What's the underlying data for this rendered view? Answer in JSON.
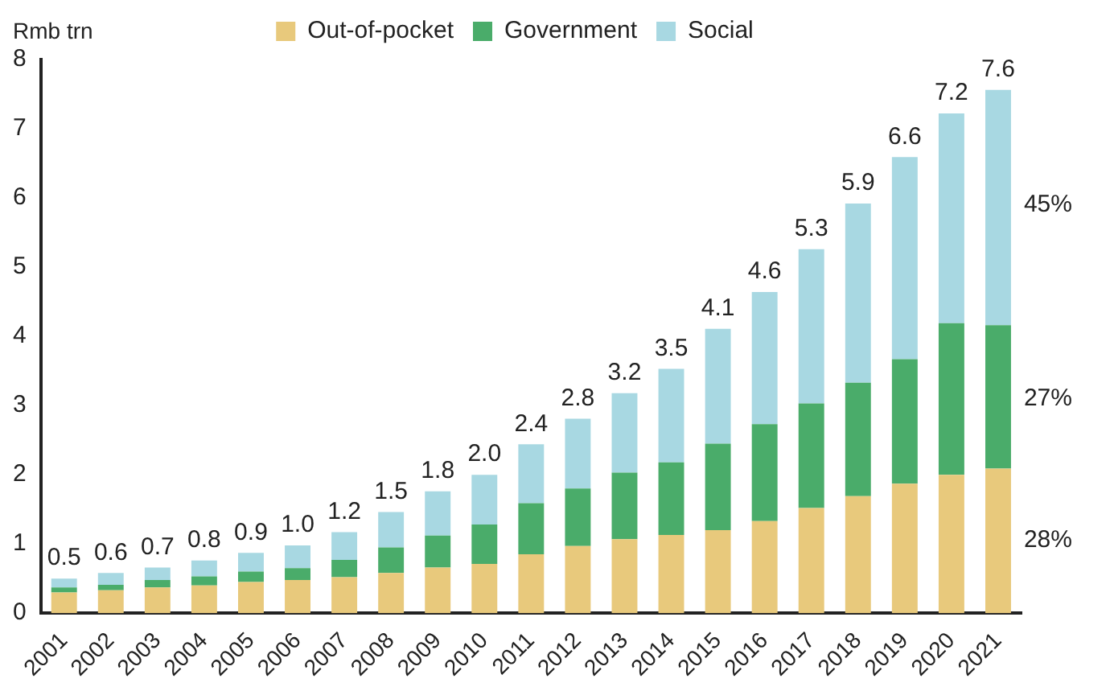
{
  "chart_data": {
    "type": "bar",
    "stacked": true,
    "ylabel": "Rmb trn",
    "categories": [
      "2001",
      "2002",
      "2003",
      "2004",
      "2005",
      "2006",
      "2007",
      "2008",
      "2009",
      "2010",
      "2011",
      "2012",
      "2013",
      "2014",
      "2015",
      "2016",
      "2017",
      "2018",
      "2019",
      "2020",
      "2021"
    ],
    "series": [
      {
        "name": "Out-of-pocket",
        "color": "#e8c97c",
        "values": [
          0.3,
          0.33,
          0.37,
          0.4,
          0.45,
          0.48,
          0.52,
          0.58,
          0.66,
          0.71,
          0.85,
          0.97,
          1.07,
          1.13,
          1.2,
          1.33,
          1.52,
          1.69,
          1.87,
          2.0,
          2.09
        ]
      },
      {
        "name": "Government",
        "color": "#4aac6a",
        "values": [
          0.07,
          0.08,
          0.11,
          0.13,
          0.15,
          0.17,
          0.25,
          0.37,
          0.46,
          0.57,
          0.74,
          0.83,
          0.96,
          1.05,
          1.25,
          1.4,
          1.51,
          1.64,
          1.8,
          2.19,
          2.07
        ]
      },
      {
        "name": "Social",
        "color": "#a8d8e2",
        "values": [
          0.13,
          0.17,
          0.18,
          0.23,
          0.27,
          0.33,
          0.4,
          0.51,
          0.64,
          0.72,
          0.85,
          1.01,
          1.15,
          1.35,
          1.66,
          1.91,
          2.23,
          2.59,
          2.92,
          3.03,
          3.4
        ]
      }
    ],
    "totals": [
      "0.5",
      "0.6",
      "0.7",
      "0.8",
      "0.9",
      "1.0",
      "1.2",
      "1.5",
      "1.8",
      "2.0",
      "2.4",
      "2.8",
      "3.2",
      "3.5",
      "4.1",
      "4.6",
      "5.3",
      "5.9",
      "6.6",
      "7.2",
      "7.6"
    ],
    "annotations": [
      {
        "text": "28%",
        "x": "2021",
        "y": 1.05
      },
      {
        "text": "27%",
        "x": "2021",
        "y": 3.1
      },
      {
        "text": "45%",
        "x": "2021",
        "y": 5.9
      }
    ],
    "ylim": [
      0,
      8
    ],
    "yticks": [
      0,
      1,
      2,
      3,
      4,
      5,
      6,
      7,
      8
    ],
    "grid": false,
    "legend": "top"
  }
}
